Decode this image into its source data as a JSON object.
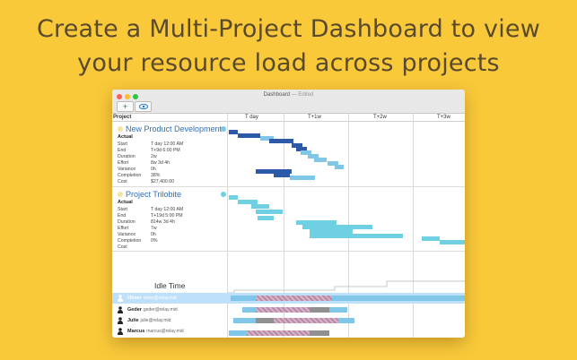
{
  "headline": {
    "line1": "Create a Multi-Project Dashboard to view",
    "line2": "your resource load across projects"
  },
  "window": {
    "title": "Dashboard",
    "status": "— Edited",
    "add_icon": "plus-icon",
    "view_icon": "eye-icon"
  },
  "columns": {
    "project": "Project",
    "timeline": [
      "T day",
      "T+1w",
      "T+2w",
      "T+3w"
    ]
  },
  "field_labels": [
    "Start",
    "End",
    "Duration",
    "Effort",
    "Variance",
    "Completion",
    "Cost"
  ],
  "projects": [
    {
      "name": "New Product Development",
      "actual": "Actual",
      "values": [
        "T day 12:00 AM",
        "T+9d 6:00 PM",
        "2w",
        "8w 3d 4h",
        "0h",
        "38%",
        "$27,400.00"
      ],
      "color_main": "#7fc6e8",
      "color_dark": "#2d5aa8"
    },
    {
      "name": "Project Trilobite",
      "actual": "Actual",
      "values": [
        "T day 12:00 AM",
        "T+19d 5:00 PM",
        "814w 3d 4h",
        "7w",
        "0h",
        "0%",
        ""
      ],
      "color_main": "#6fd0e4",
      "color_dark": "#2d5aa8"
    }
  ],
  "idle_label": "Idle Time",
  "resources": [
    {
      "name": "Oliver",
      "email": "oliver@relay.mid",
      "selected": true
    },
    {
      "name": "Geder",
      "email": "geder@relay.mid",
      "selected": false
    },
    {
      "name": "Julie",
      "email": "julie@relay.mid",
      "selected": false
    },
    {
      "name": "Marcus",
      "email": "marcus@relay.mid",
      "selected": false
    }
  ],
  "colors": {
    "background": "#f9c93a",
    "headline": "#5a4a2c",
    "selection": "#bfe0fb",
    "overload": "#b98aa6",
    "gray": "#909090"
  }
}
